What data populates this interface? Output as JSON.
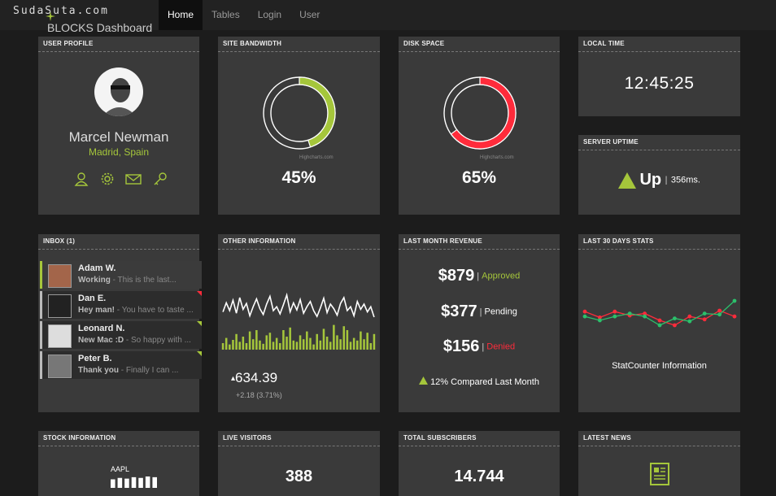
{
  "watermark": "SudaSuta.com",
  "brand": "BLOCKS Dashboard",
  "nav": [
    {
      "label": "Home",
      "active": true
    },
    {
      "label": "Tables",
      "active": false
    },
    {
      "label": "Login",
      "active": false
    },
    {
      "label": "User",
      "active": false
    }
  ],
  "colors": {
    "accent": "#a5c63b",
    "danger": "#ff2b3b",
    "panel": "#3a3a3a",
    "background": "#1c1c1c"
  },
  "user_profile": {
    "title": "USER PROFILE",
    "name": "Marcel Newman",
    "location": "Madrid, Spain",
    "icons": [
      "user-icon",
      "gear-icon",
      "mail-icon",
      "key-icon"
    ]
  },
  "bandwidth": {
    "title": "SITE BANDWIDTH",
    "value": "45%",
    "fraction": 0.45,
    "credit": "Highcharts.com"
  },
  "disk": {
    "title": "DISK SPACE",
    "value": "65%",
    "fraction": 0.65,
    "credit": "Highcharts.com"
  },
  "local_time": {
    "title": "LOCAL TIME",
    "time": "12:45:25"
  },
  "uptime": {
    "title": "SERVER UPTIME",
    "status": "Up",
    "ms": "356ms."
  },
  "inbox": {
    "title": "INBOX (1)",
    "messages": [
      {
        "name": "Adam W.",
        "subject": "Working",
        "preview": " - This is the last...",
        "flag": ""
      },
      {
        "name": "Dan E.",
        "subject": "Hey man!",
        "preview": " - You have to taste ...",
        "flag": "red"
      },
      {
        "name": "Leonard N.",
        "subject": "New Mac :D",
        "preview": " - So happy with ...",
        "flag": "green"
      },
      {
        "name": "Peter B.",
        "subject": "Thank you",
        "preview": " - Finally I can ...",
        "flag": "green"
      }
    ]
  },
  "other_info": {
    "title": "OTHER INFORMATION",
    "value": "634.39",
    "change": "+2.18 (3.71%)"
  },
  "revenue": {
    "title": "LAST MONTH REVENUE",
    "rows": [
      {
        "amount": "$879",
        "label": "Approved",
        "tone": "green"
      },
      {
        "amount": "$377",
        "label": "Pending",
        "tone": "white"
      },
      {
        "amount": "$156",
        "label": "Denied",
        "tone": "red"
      }
    ],
    "compare": "12% Compared Last Month"
  },
  "stats": {
    "title": "LAST 30 DAYS STATS",
    "caption": "StatCounter Information"
  },
  "stock": {
    "title": "STOCK INFORMATION",
    "symbol": "AAPL"
  },
  "live_visitors": {
    "title": "LIVE VISITORS",
    "value": "388"
  },
  "subscribers": {
    "title": "TOTAL SUBSCRIBERS",
    "value": "14.744"
  },
  "news": {
    "title": "LATEST NEWS"
  },
  "chart_data": [
    {
      "type": "line",
      "chart": "other-information",
      "x": [
        1,
        2,
        3,
        4,
        5,
        6,
        7,
        8,
        9,
        10,
        11,
        12,
        13,
        14,
        15,
        16,
        17,
        18,
        19,
        20,
        21,
        22,
        23,
        24,
        25,
        26,
        27,
        28,
        29,
        30,
        31,
        32,
        33,
        34,
        35,
        36,
        37,
        38,
        39,
        40,
        41,
        42,
        43,
        44,
        45,
        46
      ],
      "series": [
        {
          "values": [
            58,
            72,
            60,
            76,
            56,
            80,
            62,
            71,
            52,
            66,
            78,
            63,
            54,
            70,
            82,
            60,
            66,
            55,
            69,
            84,
            58,
            72,
            61,
            77,
            56,
            66,
            74,
            60,
            51,
            64,
            79,
            57,
            70,
            63,
            53,
            71,
            80,
            60,
            66,
            52,
            74,
            62,
            70,
            58,
            66,
            50
          ]
        },
        {
          "values": [
            10,
            18,
            8,
            15,
            24,
            12,
            20,
            10,
            28,
            16,
            30,
            14,
            9,
            22,
            26,
            12,
            18,
            10,
            30,
            20,
            34,
            14,
            12,
            22,
            16,
            28,
            18,
            8,
            24,
            14,
            32,
            20,
            12,
            38,
            22,
            16,
            36,
            30,
            12,
            18,
            14,
            28,
            16,
            26,
            10,
            24
          ]
        }
      ]
    },
    {
      "type": "line",
      "chart": "last-30-days-stats",
      "x": [
        1,
        2,
        3,
        4,
        5,
        6,
        7,
        8,
        9,
        10,
        11
      ],
      "series": [
        {
          "values": [
            58,
            46,
            58,
            50,
            54,
            40,
            30,
            48,
            42,
            60,
            48
          ]
        },
        {
          "values": [
            48,
            40,
            48,
            54,
            48,
            30,
            44,
            38,
            54,
            52,
            80
          ]
        }
      ],
      "colors": [
        "#ff2b3b",
        "#2bc06b"
      ]
    },
    {
      "type": "bar",
      "chart": "stock-aapl",
      "categories": [
        "1",
        "2",
        "3",
        "4",
        "5",
        "6",
        "7"
      ],
      "values": [
        12,
        14,
        13,
        15,
        14,
        16,
        15
      ]
    }
  ]
}
